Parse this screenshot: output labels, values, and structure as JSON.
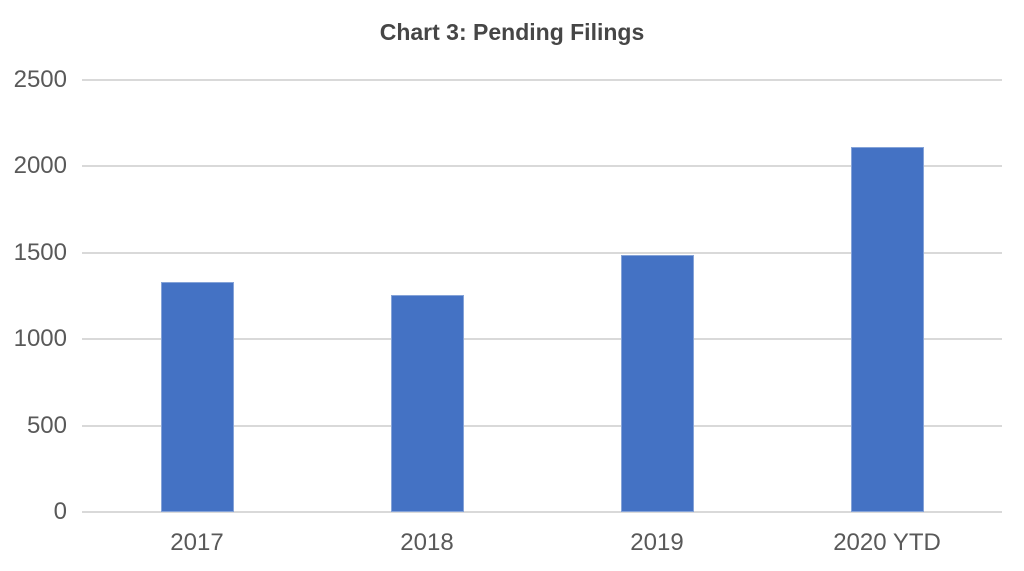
{
  "chart_data": {
    "type": "bar",
    "title": "Chart 3: Pending Filings",
    "categories": [
      "2017",
      "2018",
      "2019",
      "2020 YTD"
    ],
    "values": [
      1330,
      1255,
      1485,
      2115
    ],
    "series": [
      {
        "name": "Pending Filings",
        "values": [
          1330,
          1255,
          1485,
          2115
        ]
      }
    ],
    "xlabel": "",
    "ylabel": "",
    "ylim": [
      0,
      2500
    ],
    "yticks": [
      0,
      500,
      1000,
      1500,
      2000,
      2500
    ],
    "grid": "horizontal",
    "legend": "none",
    "colors": {
      "bar": "#4472C4",
      "gridline": "#D9D9D9",
      "tick_label": "#595959",
      "title": "#464646",
      "background": "#FFFFFF"
    }
  }
}
